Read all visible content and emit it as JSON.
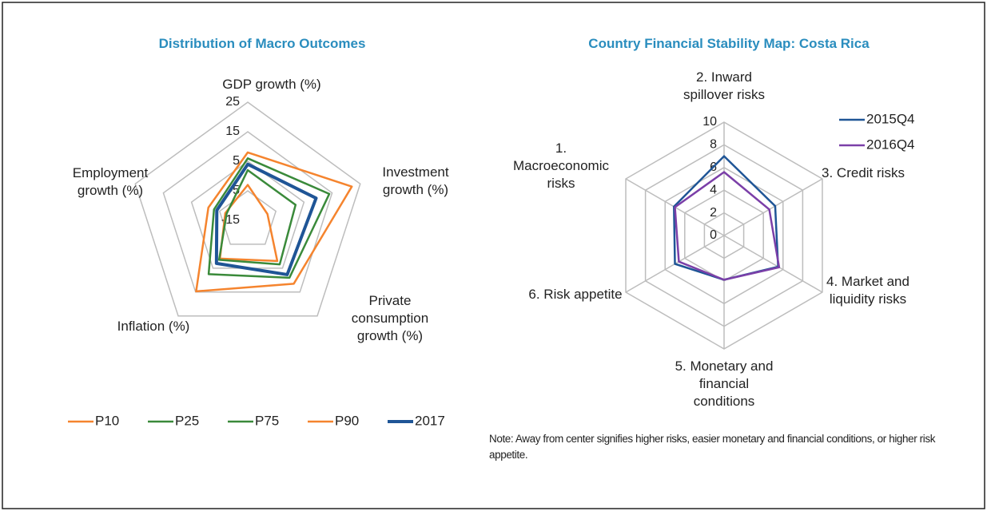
{
  "chart_data": [
    {
      "type": "radar",
      "title": "Distribution of Macro Outcomes",
      "categories": [
        "GDP growth (%)",
        "Investment growth (%)",
        "Private consumption growth (%)",
        "Inflation (%)",
        "Employment growth (%)"
      ],
      "rlim": [
        -15,
        25
      ],
      "rticks": [
        -15,
        -5,
        5,
        15,
        25
      ],
      "grid": true,
      "legend": "bottom",
      "series": [
        {
          "name": "P10",
          "color": "#f5842e",
          "linewidth": 2.5,
          "values": [
            -3,
            -8,
            2,
            1,
            -7
          ]
        },
        {
          "name": "P25",
          "color": "#3a8a3a",
          "linewidth": 2.5,
          "values": [
            2,
            2,
            3.4,
            1.5,
            -7.5
          ]
        },
        {
          "name": "P75",
          "color": "#3a8a3a",
          "linewidth": 2.5,
          "values": [
            6,
            14,
            9,
            7.5,
            -3
          ]
        },
        {
          "name": "P90",
          "color": "#f5842e",
          "linewidth": 2.5,
          "values": [
            8,
            22,
            11.5,
            14.7,
            -1
          ]
        },
        {
          "name": "2017",
          "color": "#1f5596",
          "linewidth": 4,
          "values": [
            4,
            9.3,
            7.7,
            3,
            -4
          ]
        }
      ]
    },
    {
      "type": "radar",
      "title": "Country Financial Stability Map: Costa Rica",
      "categories": [
        "2. Inward spillover risks",
        "3. Credit risks",
        "4. Market and liquidity risks",
        "5. Monetary and financial conditions",
        "6. Risk appetite",
        "1. Macroeconomic risks"
      ],
      "rlim": [
        0,
        10
      ],
      "rticks": [
        0,
        2,
        4,
        6,
        8,
        10
      ],
      "grid": true,
      "legend": "upper right",
      "note": "Note: Away from center signifies higher risks, easier monetary and financial conditions, or higher risk appetite.",
      "series": [
        {
          "name": "2015Q4",
          "color": "#1f5596",
          "linewidth": 2.5,
          "values": [
            7,
            5.2,
            5.5,
            3.9,
            5,
            5.1
          ]
        },
        {
          "name": "2016Q4",
          "color": "#7b3fa8",
          "linewidth": 2.5,
          "values": [
            5.6,
            4.6,
            5.6,
            3.9,
            4.6,
            5
          ]
        }
      ]
    }
  ]
}
